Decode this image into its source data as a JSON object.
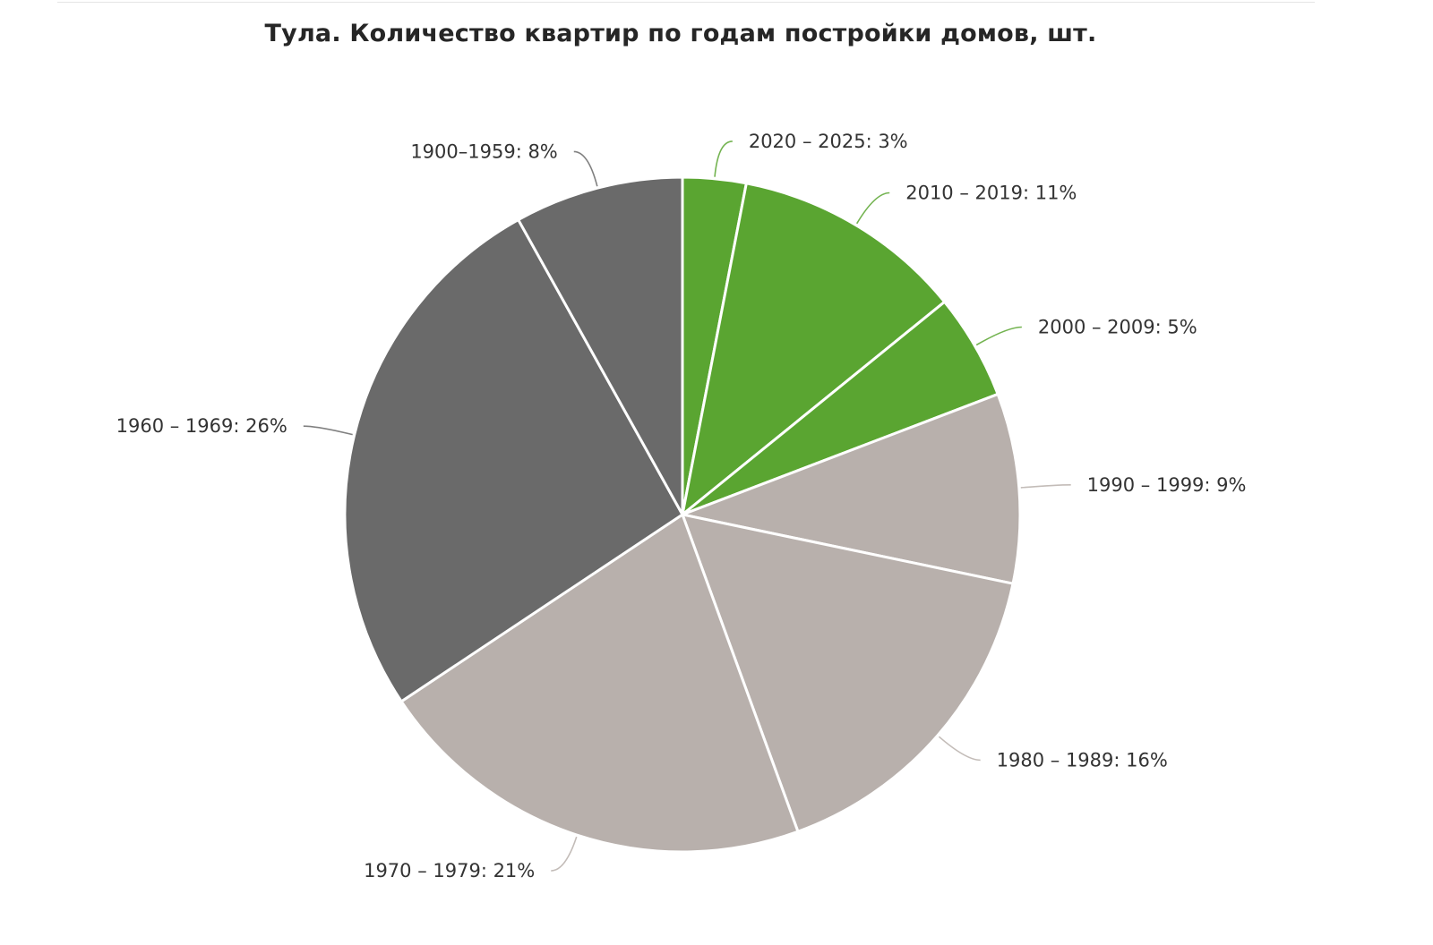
{
  "chart_data": {
    "type": "pie",
    "title": "Тула. Количество квартир по годам постройки домов, шт.",
    "start_angle_deg": 0,
    "direction": "clockwise",
    "slices": [
      {
        "category": "2020 – 2025",
        "label": "2020 – 2025: 3%",
        "value": 3,
        "color": "#5aa531"
      },
      {
        "category": "2010 – 2019",
        "label": "2010 – 2019: 11%",
        "value": 11,
        "color": "#5aa531"
      },
      {
        "category": "2000 – 2009",
        "label": "2000 – 2009: 5%",
        "value": 5,
        "color": "#5aa531"
      },
      {
        "category": "1990 – 1999",
        "label": "1990 – 1999: 9%",
        "value": 9,
        "color": "#b8b0ac"
      },
      {
        "category": "1980 – 1989",
        "label": "1980 – 1989: 16%",
        "value": 16,
        "color": "#b8b0ac"
      },
      {
        "category": "1970 – 1979",
        "label": "1970 – 1979: 21%",
        "value": 21,
        "color": "#b8b0ac"
      },
      {
        "category": "1960 – 1969",
        "label": "1960 – 1969: 26%",
        "value": 26,
        "color": "#6a6a6a"
      },
      {
        "category": "1900–1959",
        "label": "1900–1959: 8%",
        "value": 8,
        "color": "#6a6a6a"
      }
    ],
    "legend": "none",
    "labels": "outside with leader lines"
  }
}
